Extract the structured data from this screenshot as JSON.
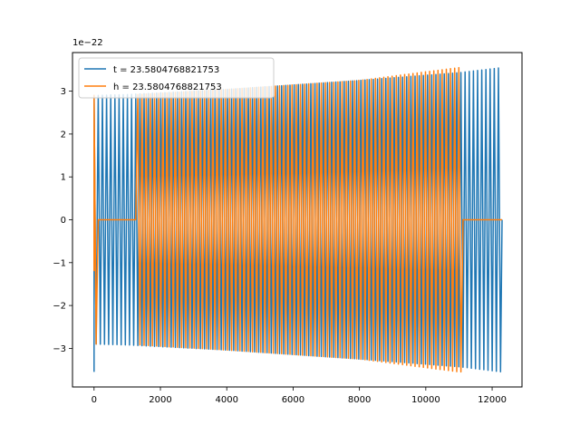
{
  "chart_data": {
    "type": "line",
    "title": "",
    "xlabel": "",
    "ylabel": "",
    "y_offset_label": "1e−22",
    "xlim": [
      -650,
      12900
    ],
    "ylim": [
      -3.9,
      3.9
    ],
    "x_ticks": [
      0,
      2000,
      4000,
      6000,
      8000,
      10000,
      12000
    ],
    "x_tick_labels": [
      "0",
      "2000",
      "4000",
      "6000",
      "8000",
      "10000",
      "12000"
    ],
    "y_ticks": [
      -3,
      -2,
      -1,
      0,
      1,
      2,
      3
    ],
    "y_tick_labels": [
      "−3",
      "−2",
      "−1",
      "0",
      "1",
      "2",
      "3"
    ],
    "grid": false,
    "legend_position": "upper-left",
    "series": [
      {
        "name": "t = 23.5804768821753",
        "color": "#1f77b4",
        "description": "oscillation with growing amplitude over whole range",
        "x_start": 0,
        "x_end": 12300,
        "flat_ranges": [],
        "envelope": [
          [
            0,
            2.9
          ],
          [
            1000,
            2.92
          ],
          [
            4000,
            3.04
          ],
          [
            8000,
            3.25
          ],
          [
            11000,
            3.43
          ],
          [
            12300,
            3.55
          ]
        ],
        "start_spike": [
          0,
          -3.55
        ]
      },
      {
        "name": "h = 23.5804768821753",
        "color": "#ff7f0e",
        "description": "oscillation with flat segments at start and end",
        "x_start": 0,
        "x_end": 12300,
        "flat_ranges": [
          [
            80,
            1300
          ],
          [
            11100,
            12300
          ]
        ],
        "envelope": [
          [
            0,
            2.9
          ],
          [
            1300,
            2.92
          ],
          [
            4000,
            3.04
          ],
          [
            8000,
            3.25
          ],
          [
            11000,
            3.55
          ]
        ],
        "start_spike": [
          0,
          -1.2
        ]
      }
    ]
  }
}
